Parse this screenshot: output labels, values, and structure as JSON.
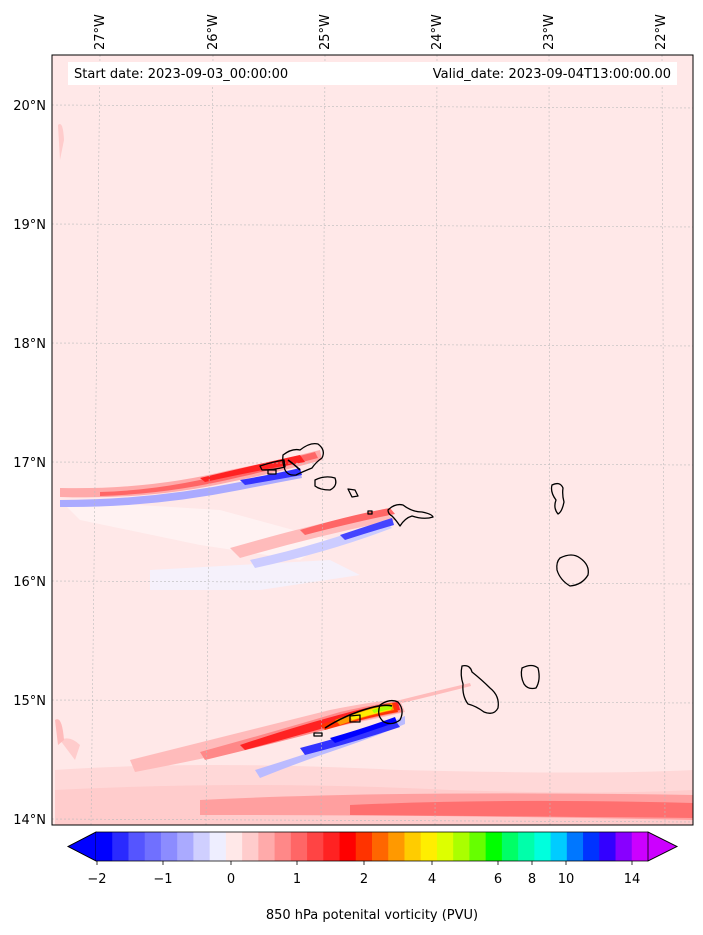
{
  "header": {
    "start_date": "Start date: 2023-09-03_00:00:00",
    "valid_date": "Valid_date: 2023-09-04T13:00:00.00"
  },
  "map": {
    "lon_labels": [
      "27°W",
      "26°W",
      "25°W",
      "24°W",
      "23°W",
      "22°W"
    ],
    "lat_labels": [
      "20°N",
      "19°N",
      "18°N",
      "17°N",
      "16°N",
      "15°N",
      "14°N"
    ],
    "background_color": "#ffe8e8"
  },
  "colorbar": {
    "title": "850 hPa potenital vorticity (PVU)",
    "tick_labels": [
      "−2",
      "−1",
      "0",
      "1",
      "2",
      "4",
      "6",
      "8",
      "10",
      "14"
    ],
    "colors": [
      "#0000ff",
      "#2a2aff",
      "#5555ff",
      "#7070ff",
      "#8c8cff",
      "#aaaaff",
      "#cfcfff",
      "#eeeeff",
      "#ffe8e8",
      "#ffcccc",
      "#ffaaaa",
      "#ff8888",
      "#ff6666",
      "#ff4444",
      "#ff2222",
      "#ff0000",
      "#ff3300",
      "#ff6600",
      "#ff9900",
      "#ffcc00",
      "#ffee00",
      "#ddff00",
      "#aaff00",
      "#66ff00",
      "#00ff00",
      "#00ff66",
      "#00ffaa",
      "#00ffdd",
      "#00ccff",
      "#0077ff",
      "#0033ff",
      "#3300ff",
      "#8800ff",
      "#cc00ff"
    ],
    "under_color": "#0000ff",
    "over_color": "#cc00ff"
  }
}
